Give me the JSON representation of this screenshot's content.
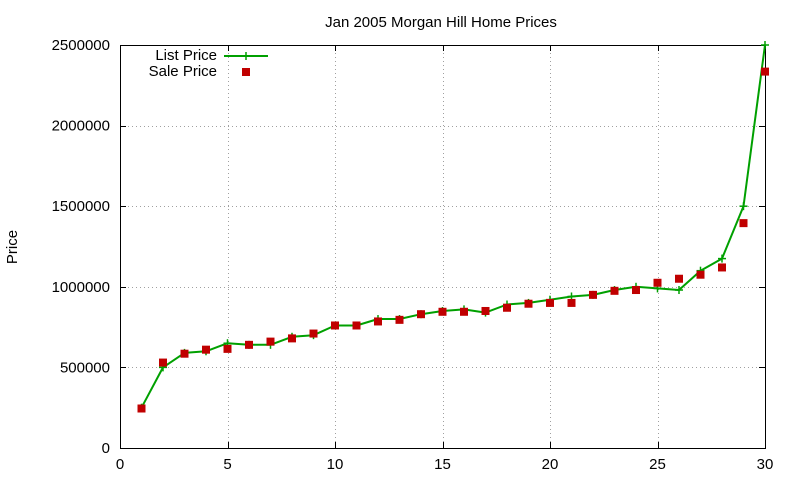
{
  "chart_data": {
    "type": "line",
    "title": "Jan 2005 Morgan Hill Home Prices",
    "xlabel": "",
    "ylabel": "Price",
    "xlim": [
      0,
      30
    ],
    "ylim": [
      0,
      2500000
    ],
    "x_ticks": [
      "0",
      "5",
      "10",
      "15",
      "20",
      "25",
      "30"
    ],
    "y_ticks": [
      "0",
      "500000",
      "1000000",
      "1500000",
      "2000000",
      "2500000"
    ],
    "grid": true,
    "legend_position": "top-left",
    "x": [
      1,
      2,
      3,
      4,
      5,
      6,
      7,
      8,
      9,
      10,
      11,
      12,
      13,
      14,
      15,
      16,
      17,
      18,
      19,
      20,
      21,
      22,
      23,
      24,
      25,
      26,
      27,
      28,
      29,
      30
    ],
    "series": [
      {
        "name": "List Price",
        "style": "lines+points",
        "marker": "plus",
        "color": "#00a000",
        "values": [
          250000,
          500000,
          590000,
          600000,
          650000,
          640000,
          640000,
          690000,
          700000,
          760000,
          760000,
          800000,
          800000,
          830000,
          850000,
          860000,
          840000,
          890000,
          900000,
          920000,
          940000,
          950000,
          980000,
          1000000,
          990000,
          980000,
          1100000,
          1175000,
          1500000,
          2500000
        ]
      },
      {
        "name": "Sale Price",
        "style": "points",
        "marker": "filled-square",
        "color": "#c00000",
        "values": [
          245000,
          530000,
          585000,
          610000,
          615000,
          640000,
          660000,
          680000,
          710000,
          760000,
          760000,
          785000,
          795000,
          830000,
          845000,
          845000,
          850000,
          870000,
          895000,
          900000,
          900000,
          950000,
          975000,
          980000,
          1025000,
          1050000,
          1075000,
          1120000,
          1395000,
          2335000
        ]
      }
    ]
  }
}
